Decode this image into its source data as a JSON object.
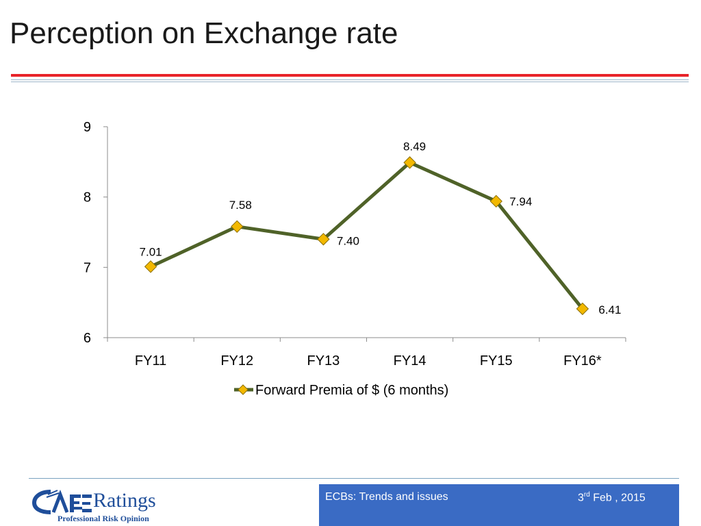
{
  "slide": {
    "title": "Perception on Exchange rate"
  },
  "chart_data": {
    "type": "line",
    "categories": [
      "FY11",
      "FY12",
      "FY13",
      "FY14",
      "FY15",
      "FY16*"
    ],
    "series": [
      {
        "name": "Forward Premia of $ (6 months)",
        "values": [
          7.01,
          7.58,
          7.4,
          8.49,
          7.94,
          6.41
        ]
      }
    ],
    "data_labels": [
      "7.01",
      "7.58",
      "7.40",
      "8.49",
      "7.94",
      "6.41"
    ],
    "ylim": [
      6,
      9
    ],
    "yticks": [
      6,
      7,
      8,
      9
    ],
    "legend_position": "bottom",
    "grid": false,
    "colors": {
      "line": "#4f6228",
      "marker": "#f2b800",
      "marker_edge": "#8a6d00"
    }
  },
  "footer": {
    "logo_text": "Ratings",
    "logo_mark": "CARE",
    "tagline": "Professional Risk Opinion",
    "topic": "ECBs: Trends and issues",
    "date_day": "3",
    "date_suffix": "rd",
    "date_rest": " Feb , 2015",
    "box_color": "#3a6bc4"
  }
}
